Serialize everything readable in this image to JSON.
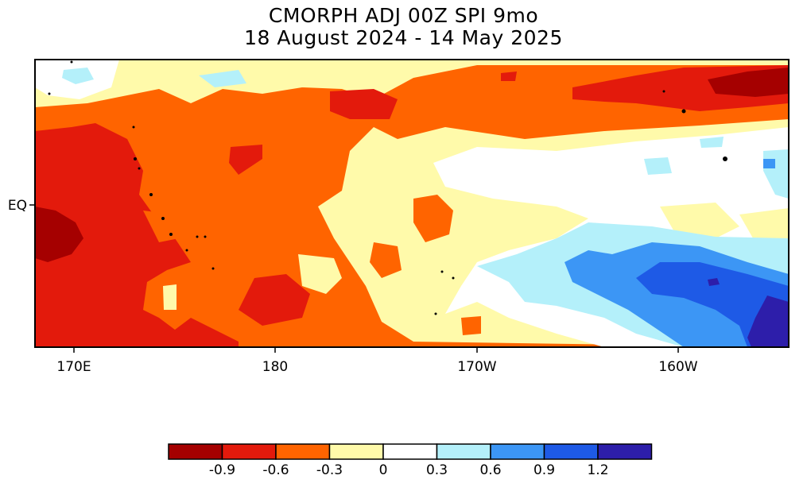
{
  "title": {
    "line1": "CMORPH ADJ 00Z SPI 9mo",
    "line2": "18 August 2024 - 14 May 2025"
  },
  "axes": {
    "x_ticks": [
      "170E",
      "180",
      "170W",
      "160W"
    ],
    "y_ticks": [
      "EQ"
    ]
  },
  "legend": {
    "labels": [
      "-0.9",
      "-0.6",
      "-0.3",
      "0",
      "0.3",
      "0.6",
      "0.9",
      "1.2"
    ],
    "colors": [
      "#a50000",
      "#e31a0c",
      "#ff6400",
      "#fffaaa",
      "#ffffff",
      "#b4f0fa",
      "#3c96f5",
      "#1e5ae6",
      "#2d1eaa"
    ]
  },
  "colors": {
    "dark_red": "#a50000",
    "red": "#e31a0c",
    "orange": "#ff6400",
    "pale_yellow": "#fffaaa",
    "white": "#ffffff",
    "light_blue": "#b4f0fa",
    "blue": "#3c96f5",
    "deep_blue": "#1e5ae6",
    "indigo": "#2d1eaa"
  }
}
